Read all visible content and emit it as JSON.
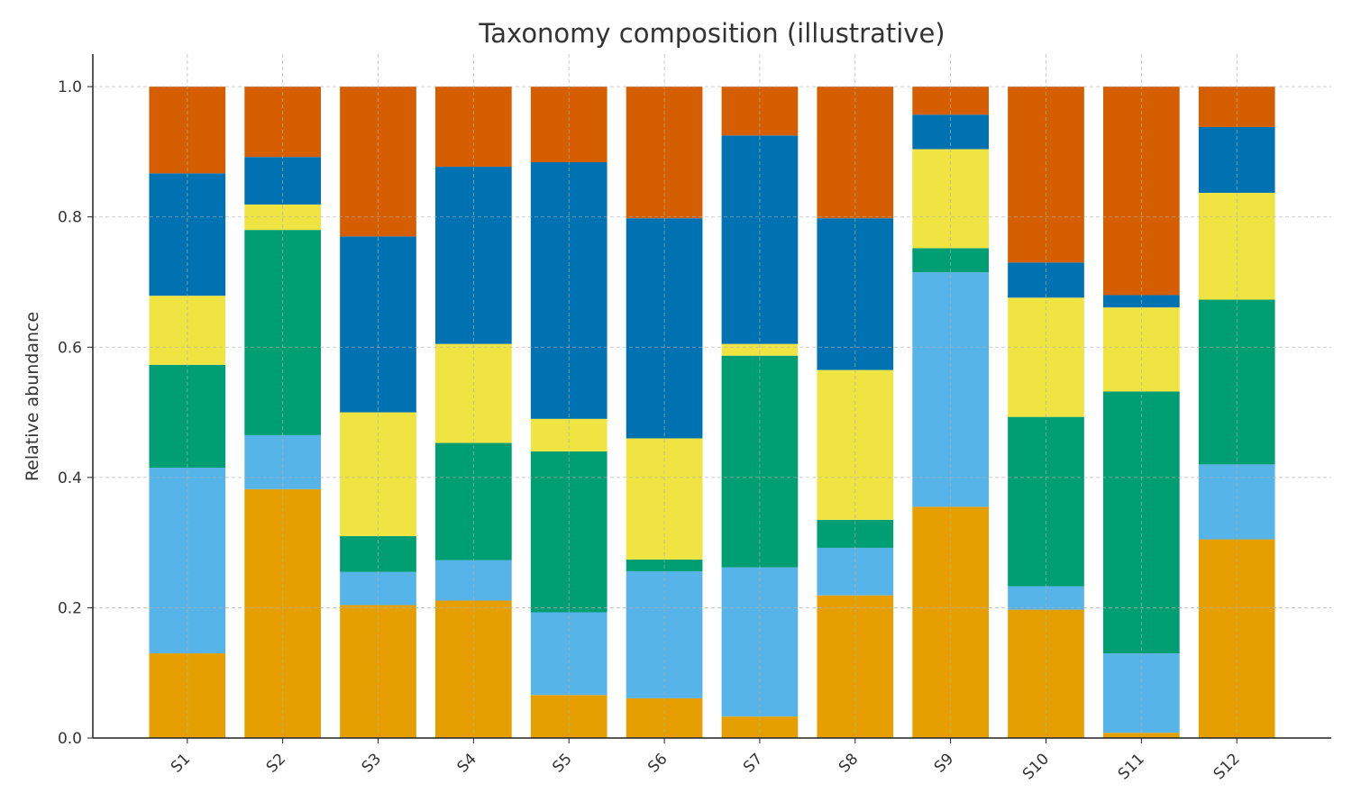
{
  "chart_data": {
    "type": "bar",
    "stacked": true,
    "title": "Taxonomy composition (illustrative)",
    "xlabel": "",
    "ylabel": "Relative abundance",
    "ylim": [
      0,
      1.05
    ],
    "yticks": [
      "0.0",
      "0.2",
      "0.4",
      "0.6",
      "0.8",
      "1.0"
    ],
    "grid": true,
    "categories": [
      "S1",
      "S2",
      "S3",
      "S4",
      "S5",
      "S6",
      "S7",
      "S8",
      "S9",
      "S10",
      "S11",
      "S12"
    ],
    "series": [
      {
        "color": "#E69F00",
        "values": [
          0.13,
          0.382,
          0.204,
          0.211,
          0.066,
          0.061,
          0.033,
          0.219,
          0.355,
          0.197,
          0.008,
          0.305
        ]
      },
      {
        "color": "#56B4E9",
        "values": [
          0.285,
          0.083,
          0.051,
          0.062,
          0.127,
          0.195,
          0.229,
          0.073,
          0.36,
          0.036,
          0.122,
          0.115
        ]
      },
      {
        "color": "#009E73",
        "values": [
          0.158,
          0.315,
          0.055,
          0.18,
          0.247,
          0.018,
          0.325,
          0.043,
          0.037,
          0.26,
          0.402,
          0.253
        ]
      },
      {
        "color": "#F0E442",
        "values": [
          0.106,
          0.039,
          0.19,
          0.152,
          0.05,
          0.186,
          0.018,
          0.23,
          0.152,
          0.183,
          0.129,
          0.164
        ]
      },
      {
        "color": "#0072B2",
        "values": [
          0.188,
          0.073,
          0.27,
          0.272,
          0.394,
          0.338,
          0.32,
          0.233,
          0.053,
          0.054,
          0.019,
          0.101
        ]
      },
      {
        "color": "#D55E00",
        "values": [
          0.133,
          0.108,
          0.23,
          0.123,
          0.116,
          0.202,
          0.075,
          0.202,
          0.043,
          0.27,
          0.32,
          0.062
        ]
      }
    ]
  }
}
